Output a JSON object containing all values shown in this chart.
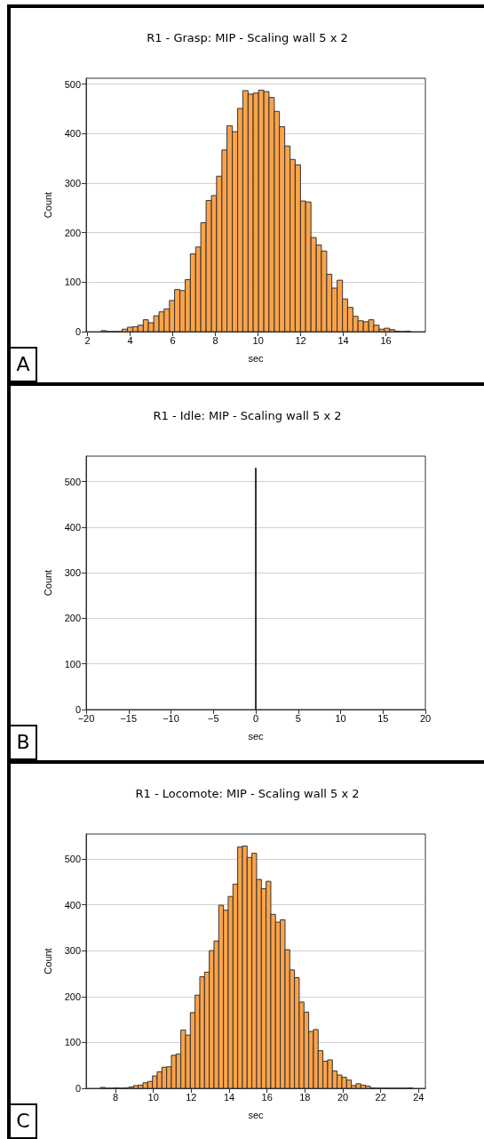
{
  "chart_data": [
    {
      "type": "histogram",
      "title": "R1 - Grasp: MIP - Scaling wall 5 x 2",
      "xlabel": "sec",
      "ylabel": "Count",
      "color": "#fca349",
      "grid": "y",
      "annotations": [
        "A"
      ],
      "bins": [
        2.64,
        2.89,
        3.13,
        3.38,
        3.62,
        3.87,
        4.12,
        4.36,
        4.61,
        4.85,
        5.1,
        5.35,
        5.59,
        5.84,
        6.08,
        6.33,
        6.58,
        6.82,
        7.07,
        7.31,
        7.56,
        7.81,
        8.05,
        8.3,
        8.54,
        8.79,
        9.04,
        9.28,
        9.53,
        9.77,
        10.02,
        10.27,
        10.51,
        10.76,
        11.0,
        11.25,
        11.5,
        11.74,
        11.99,
        12.23,
        12.48,
        12.73,
        12.97,
        13.22,
        13.46,
        13.71,
        13.96,
        14.2,
        14.45,
        14.69,
        14.94,
        15.19,
        15.43,
        15.68,
        15.92,
        16.17,
        16.42,
        16.66,
        16.91,
        17.15
      ],
      "values": [
        2,
        0,
        0,
        0,
        5,
        9,
        10,
        13,
        24,
        18,
        32,
        40,
        46,
        63,
        85,
        83,
        105,
        157,
        171,
        220,
        265,
        275,
        314,
        367,
        416,
        404,
        451,
        487,
        480,
        482,
        488,
        485,
        473,
        445,
        414,
        375,
        348,
        337,
        264,
        262,
        190,
        175,
        163,
        116,
        88,
        104,
        66,
        49,
        31,
        22,
        20,
        24,
        13,
        5,
        7,
        4,
        1,
        0,
        1
      ],
      "xlim": [
        1.93,
        17.85
      ],
      "xticks": [
        2,
        4,
        6,
        8,
        10,
        12,
        14,
        16
      ],
      "ylim": [
        0,
        512
      ],
      "yticks": [
        0,
        100,
        200,
        300,
        400,
        500
      ]
    },
    {
      "type": "histogram",
      "title": "R1 - Idle: MIP - Scaling wall 5 x 2",
      "xlabel": "sec",
      "ylabel": "Count",
      "color": "#fca349",
      "grid": "y",
      "annotations": [
        "B"
      ],
      "bins": [
        -0.05,
        0.05
      ],
      "values": [
        530
      ],
      "xlim": [
        -20,
        20
      ],
      "xticks": [
        {
          "value": -20,
          "label": "−20"
        },
        {
          "value": -15,
          "label": "−15"
        },
        {
          "value": -10,
          "label": "−10"
        },
        {
          "value": -5,
          "label": "−5"
        },
        0,
        5,
        10,
        15,
        20
      ],
      "ylim": [
        0,
        556
      ],
      "yticks": [
        0,
        100,
        200,
        300,
        400,
        500
      ]
    },
    {
      "type": "histogram",
      "title": "R1 - Locomote: MIP - Scaling wall 5 x 2",
      "xlabel": "sec",
      "ylabel": "Count",
      "color": "#fca349",
      "grid": "y",
      "annotations": [
        "C"
      ],
      "bins": [
        7.2,
        7.45,
        7.7,
        7.95,
        8.2,
        8.45,
        8.7,
        8.95,
        9.2,
        9.45,
        9.7,
        9.95,
        10.2,
        10.45,
        10.7,
        10.95,
        11.2,
        11.45,
        11.7,
        11.95,
        12.2,
        12.45,
        12.7,
        12.95,
        13.2,
        13.45,
        13.7,
        13.95,
        14.2,
        14.45,
        14.7,
        14.95,
        15.2,
        15.45,
        15.7,
        15.95,
        16.2,
        16.45,
        16.7,
        16.95,
        17.2,
        17.45,
        17.7,
        17.95,
        18.2,
        18.45,
        18.7,
        18.95,
        19.2,
        19.45,
        19.7,
        19.95,
        20.2,
        20.45,
        20.7,
        20.95,
        21.2,
        21.45,
        21.7,
        21.95,
        22.2,
        22.45,
        22.7,
        22.95,
        23.2,
        23.45,
        23.7
      ],
      "values": [
        2,
        0,
        0,
        1,
        0,
        1,
        3,
        6,
        7,
        12,
        15,
        27,
        36,
        46,
        47,
        72,
        75,
        127,
        116,
        165,
        203,
        243,
        253,
        300,
        321,
        399,
        388,
        418,
        445,
        526,
        528,
        503,
        512,
        455,
        435,
        451,
        379,
        362,
        367,
        302,
        258,
        241,
        188,
        166,
        124,
        128,
        82,
        59,
        62,
        38,
        29,
        24,
        18,
        6,
        10,
        7,
        5,
        1,
        0,
        0,
        0,
        0,
        0,
        0,
        0,
        1
      ],
      "xlim": [
        6.45,
        24.36
      ],
      "xticks": [
        8,
        10,
        12,
        14,
        16,
        18,
        20,
        22,
        24
      ],
      "ylim": [
        0,
        554
      ],
      "yticks": [
        0,
        100,
        200,
        300,
        400,
        500
      ]
    }
  ]
}
